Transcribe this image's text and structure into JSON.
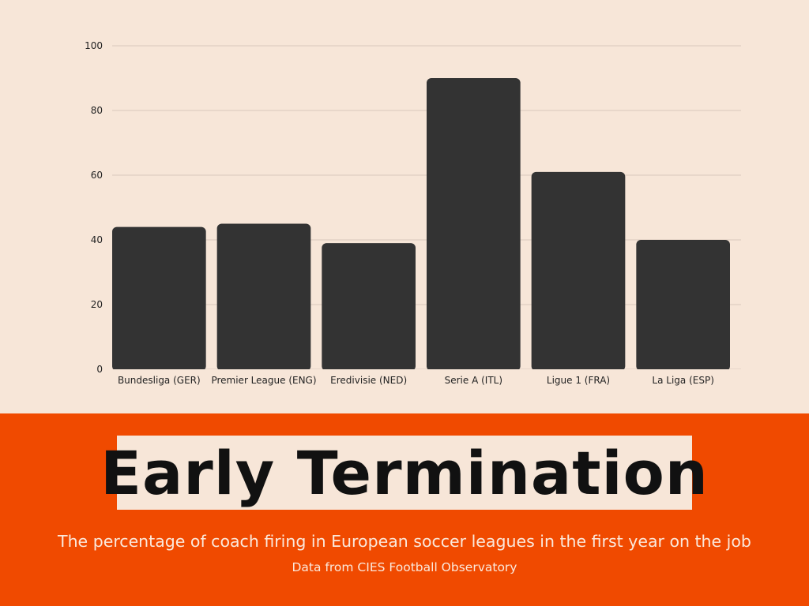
{
  "chart_data": {
    "type": "bar",
    "categories": [
      "Bundesliga (GER)",
      "Premier League (ENG)",
      "Eredivisie (NED)",
      "Serie A (ITL)",
      "Ligue 1 (FRA)",
      "La Liga (ESP)"
    ],
    "values": [
      44,
      45,
      39,
      90,
      61,
      40
    ],
    "title": "Early Termination",
    "subtitle": "The percentage of coach firing in European soccer leagues in the first year on the job",
    "source": "Data from CIES Football Observatory",
    "xlabel": "",
    "ylabel": "",
    "ylim": [
      0,
      100
    ],
    "yticks": [
      0,
      20,
      40,
      60,
      80,
      100
    ],
    "grid": true,
    "legend": "none"
  },
  "colors": {
    "bar": "#333333",
    "grid": "#d9c8bb",
    "background": "#f7e6d8",
    "footer": "#f04a00"
  }
}
